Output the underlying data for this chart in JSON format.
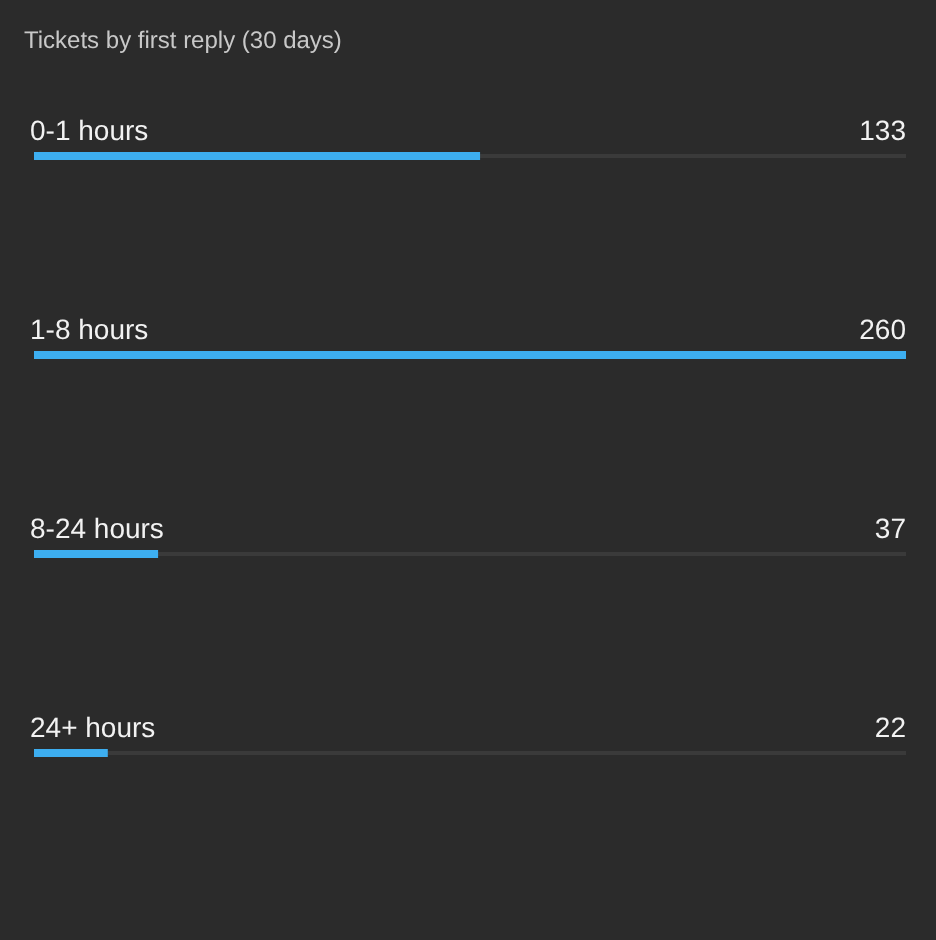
{
  "chart_data": {
    "type": "bar",
    "orientation": "horizontal",
    "title": "Tickets by first reply (30 days)",
    "categories": [
      "0-1 hours",
      "1-8 hours",
      "8-24 hours",
      "24+ hours"
    ],
    "values": [
      133,
      260,
      37,
      22
    ],
    "color": "#3daef0",
    "data_labels": true
  }
}
